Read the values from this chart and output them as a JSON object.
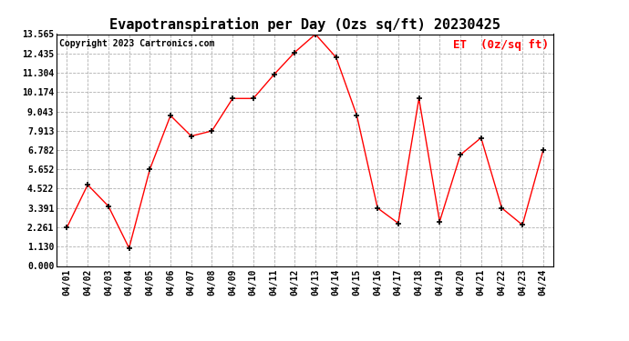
{
  "title": "Evapotranspiration per Day (Ozs sq/ft) 20230425",
  "copyright": "Copyright 2023 Cartronics.com",
  "legend_label": "ET  (0z/sq ft)",
  "dates": [
    "04/01",
    "04/02",
    "04/03",
    "04/04",
    "04/05",
    "04/06",
    "04/07",
    "04/08",
    "04/09",
    "04/10",
    "04/11",
    "04/12",
    "04/13",
    "04/14",
    "04/15",
    "04/16",
    "04/17",
    "04/18",
    "04/19",
    "04/20",
    "04/21",
    "04/22",
    "04/23",
    "04/24"
  ],
  "values": [
    2.26,
    4.75,
    3.5,
    1.05,
    5.65,
    8.8,
    7.6,
    7.9,
    9.8,
    9.8,
    11.2,
    12.5,
    13.56,
    12.2,
    8.8,
    3.39,
    2.5,
    9.8,
    2.6,
    6.5,
    7.5,
    3.39,
    2.4,
    6.78
  ],
  "yticks": [
    0.0,
    1.13,
    2.261,
    3.391,
    4.522,
    5.652,
    6.782,
    7.913,
    9.043,
    10.174,
    11.304,
    12.435,
    13.565
  ],
  "line_color": "red",
  "marker_color": "black",
  "grid_color": "#b0b0b0",
  "background_color": "white",
  "title_fontsize": 11,
  "axis_fontsize": 7,
  "copyright_fontsize": 7,
  "legend_fontsize": 9
}
